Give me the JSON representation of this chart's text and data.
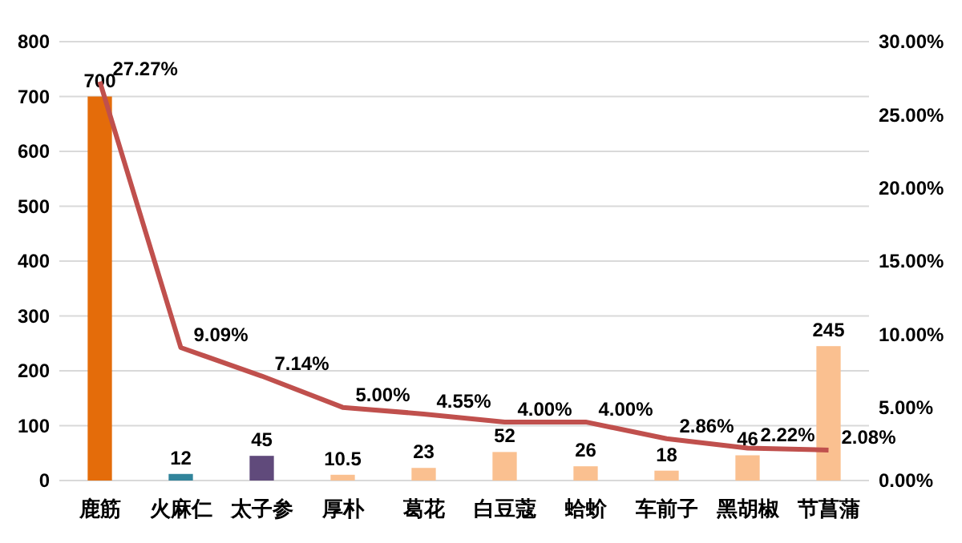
{
  "chart_data": {
    "type": "bar",
    "categories": [
      "鹿筋",
      "火麻仁",
      "太子参",
      "厚朴",
      "葛花",
      "白豆蔻",
      "蛤蚧",
      "车前子",
      "黑胡椒",
      "节菖蒲"
    ],
    "series": [
      {
        "colors": [
          "#e46c0a",
          "#31849b",
          "#604a7b",
          "#fac090",
          "#fac090",
          "#fac090",
          "#fac090",
          "#fac090",
          "#fac090",
          "#fac090"
        ],
        "values": [
          700,
          12,
          45,
          10.5,
          23,
          52,
          26,
          18,
          46,
          245
        ],
        "value_labels": [
          "700",
          "12",
          "45",
          "10.5",
          "23",
          "52",
          "26",
          "18",
          "46",
          "245"
        ]
      },
      {
        "type": "line",
        "axis": "y2",
        "color": "#c0504d",
        "values": [
          27.27,
          9.09,
          7.14,
          5.0,
          4.55,
          4.0,
          4.0,
          2.86,
          2.22,
          2.08
        ],
        "value_labels": [
          "27.27%",
          "9.09%",
          "7.14%",
          "5.00%",
          "4.55%",
          "4.00%",
          "4.00%",
          "2.86%",
          "2.22%",
          "2.08%"
        ]
      }
    ],
    "ylim": [
      0,
      800
    ],
    "yticks": [
      0,
      100,
      200,
      300,
      400,
      500,
      600,
      700,
      800
    ],
    "y2lim": [
      0,
      30
    ],
    "y2ticks": [
      {
        "value": 0,
        "label": "0.00%"
      },
      {
        "value": 5,
        "label": "5.00%"
      },
      {
        "value": 10,
        "label": "10.00%"
      },
      {
        "value": 15,
        "label": "15.00%"
      },
      {
        "value": 20,
        "label": "20.00%"
      },
      {
        "value": 25,
        "label": "25.00%"
      },
      {
        "value": 30,
        "label": "30.00%"
      }
    ],
    "grid": "y",
    "line_style": "solid",
    "marker": "none"
  }
}
